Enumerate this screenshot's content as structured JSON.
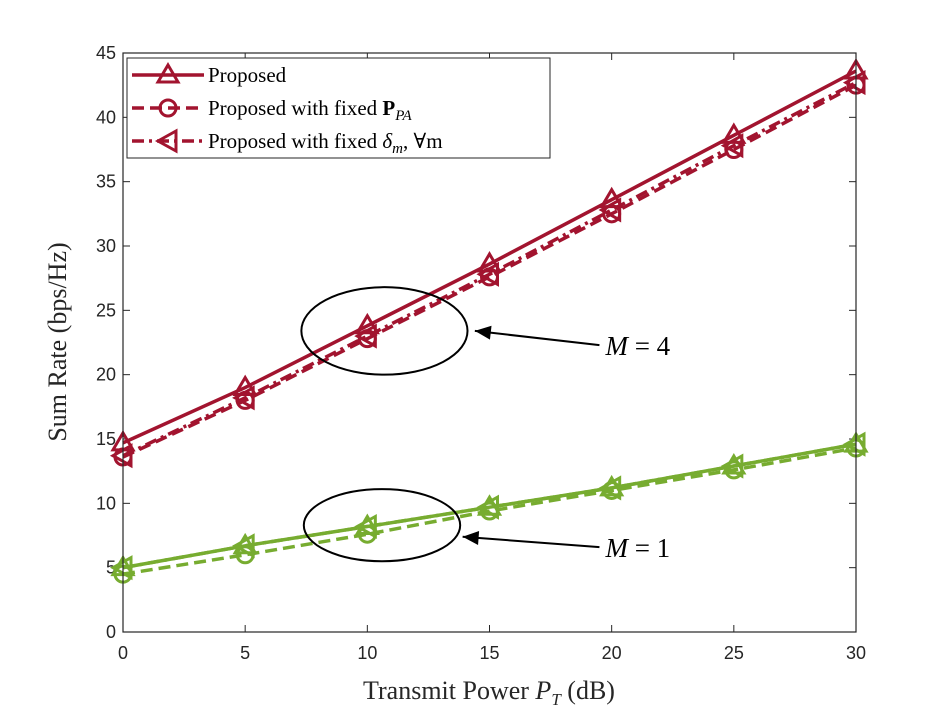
{
  "chart_data": {
    "type": "line",
    "xlabel": "Transmit Power P_T (dB)",
    "xlabel_parts": {
      "main": "Transmit Power ",
      "var": "P",
      "sub": "T",
      "unit": " (dB)"
    },
    "ylabel": "Sum Rate (bps/Hz)",
    "xlim": [
      0,
      30
    ],
    "ylim": [
      0,
      45
    ],
    "xticks": [
      "0",
      "5",
      "10",
      "15",
      "20",
      "25",
      "30"
    ],
    "yticks": [
      "0",
      "5",
      "10",
      "15",
      "20",
      "25",
      "30",
      "35",
      "40",
      "45"
    ],
    "x": [
      0,
      5,
      10,
      15,
      20,
      25,
      30
    ],
    "legend": [
      {
        "label": "Proposed",
        "line": "solid",
        "marker": "triangle-up"
      },
      {
        "label_main": "Proposed with fixed ",
        "label_bold": "P",
        "label_sub": "PA",
        "label": "Proposed with fixed P_PA",
        "line": "dashed",
        "marker": "circle"
      },
      {
        "label_main": "Proposed with fixed ",
        "label_math": "δ",
        "label_sub": "m",
        "label_tail": ", ∀m",
        "label": "Proposed with fixed δ_m, ∀m",
        "line": "dashdot",
        "marker": "triangle-left"
      }
    ],
    "legend_position": "top-left",
    "colors": {
      "M4": "#A2142F",
      "M1": "#77AC30"
    },
    "series": [
      {
        "name": "Proposed (M=4)",
        "group": "M4",
        "style": "solid",
        "marker": "triangle-up",
        "values": [
          14.7,
          19.0,
          23.8,
          28.6,
          33.6,
          38.6,
          43.6
        ]
      },
      {
        "name": "Proposed with fixed P_PA (M=4)",
        "group": "M4",
        "style": "dashed",
        "marker": "circle",
        "values": [
          13.6,
          18.0,
          22.8,
          27.6,
          32.5,
          37.5,
          42.5
        ]
      },
      {
        "name": "Proposed with fixed delta_m (M=4)",
        "group": "M4",
        "style": "dashdot",
        "marker": "triangle-left",
        "values": [
          13.7,
          18.2,
          23.0,
          27.8,
          32.8,
          37.8,
          42.7
        ]
      },
      {
        "name": "Proposed (M=1)",
        "group": "M1",
        "style": "solid",
        "marker": "triangle-up",
        "values": [
          5.0,
          6.7,
          8.2,
          9.7,
          11.2,
          12.9,
          14.6
        ]
      },
      {
        "name": "Proposed with fixed P_PA (M=1)",
        "group": "M1",
        "style": "dashed",
        "marker": "circle",
        "values": [
          4.5,
          6.0,
          7.6,
          9.4,
          11.0,
          12.6,
          14.3
        ]
      },
      {
        "name": "Proposed with fixed delta_m (M=1)",
        "group": "M1",
        "style": "dashdot",
        "marker": "triangle-left",
        "values": [
          5.0,
          6.7,
          8.2,
          9.7,
          11.2,
          12.9,
          14.6
        ]
      }
    ],
    "annotations": [
      {
        "name": "annotation-m4",
        "label": "M = 4",
        "var": "M",
        "rest": " = 4",
        "ellipse_center": [
          10.7,
          23.4
        ],
        "ellipse_radii": [
          3.4,
          3.4
        ],
        "arrow_tail": [
          19.5,
          22.3
        ],
        "arrow_head": [
          14.4,
          23.4
        ]
      },
      {
        "name": "annotation-m1",
        "label": "M = 1",
        "var": "M",
        "rest": " = 1",
        "ellipse_center": [
          10.6,
          8.3
        ],
        "ellipse_radii": [
          3.2,
          2.8
        ],
        "arrow_tail": [
          19.5,
          6.6
        ],
        "arrow_head": [
          13.9,
          7.4
        ]
      }
    ]
  }
}
